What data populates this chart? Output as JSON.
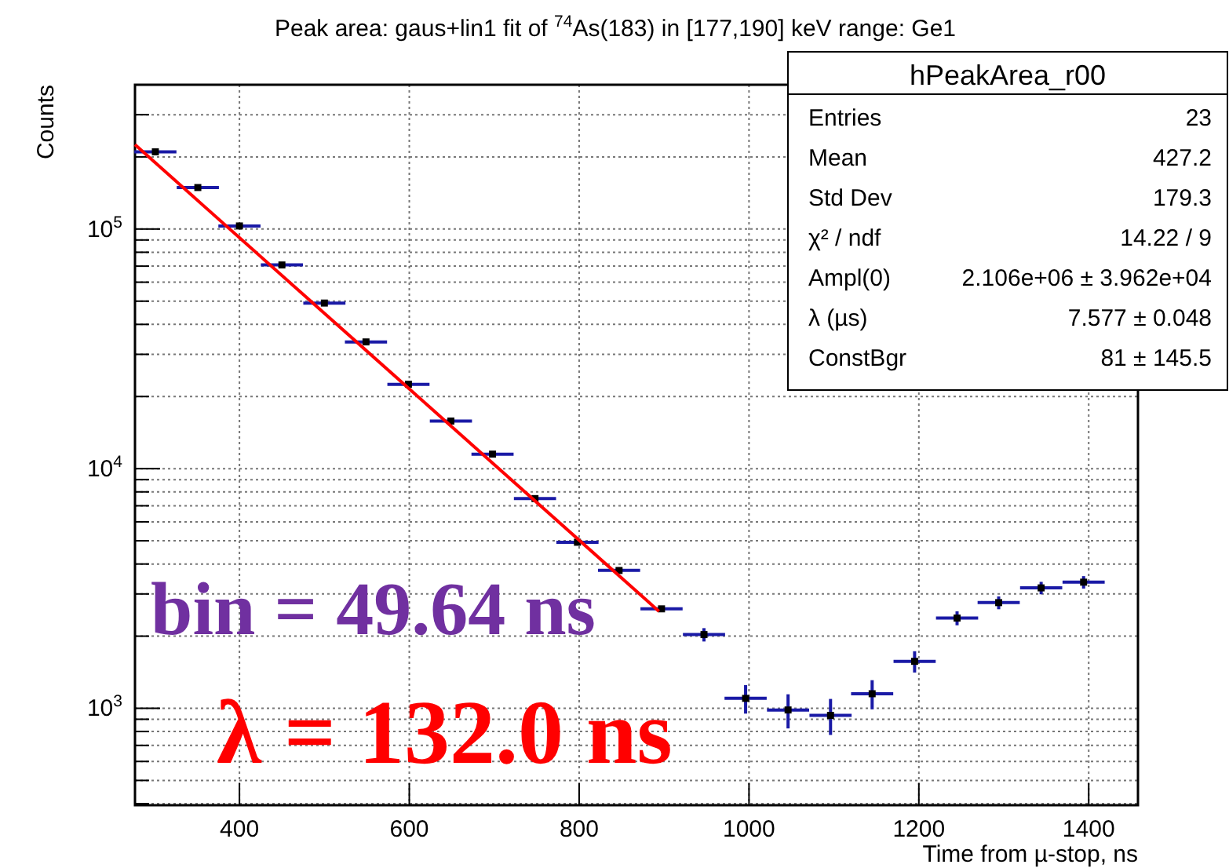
{
  "chart_data": {
    "type": "scatter",
    "title": "Peak area: gaus+lin1 fit of $^{74}$As(183) in [177,190] keV range: Ge1",
    "xlabel": "Time from µ-stop, ns",
    "ylabel": "Counts",
    "log": "y",
    "grid": true,
    "marker": "square",
    "xlim": [
      277,
      1458
    ],
    "ylim": [
      394,
      400000
    ],
    "xticks": [
      400,
      600,
      800,
      1000,
      1200,
      1400
    ],
    "yticks": [
      {
        "value": 400,
        "label": null
      },
      {
        "value": 500,
        "label": null
      },
      {
        "value": 600,
        "label": null
      },
      {
        "value": 700,
        "label": null
      },
      {
        "value": 800,
        "label": null
      },
      {
        "value": 900,
        "label": null
      },
      {
        "value": 1000,
        "label": "10$^{3}$"
      },
      {
        "value": 2000,
        "label": null
      },
      {
        "value": 3000,
        "label": null
      },
      {
        "value": 4000,
        "label": null
      },
      {
        "value": 5000,
        "label": null
      },
      {
        "value": 6000,
        "label": null
      },
      {
        "value": 7000,
        "label": null
      },
      {
        "value": 8000,
        "label": null
      },
      {
        "value": 9000,
        "label": null
      },
      {
        "value": 10000,
        "label": "10$^{4}$"
      },
      {
        "value": 20000,
        "label": null
      },
      {
        "value": 30000,
        "label": null
      },
      {
        "value": 40000,
        "label": null
      },
      {
        "value": 50000,
        "label": null
      },
      {
        "value": 60000,
        "label": null
      },
      {
        "value": 70000,
        "label": null
      },
      {
        "value": 80000,
        "label": null
      },
      {
        "value": 90000,
        "label": null
      },
      {
        "value": 100000,
        "label": "10$^{5}$"
      },
      {
        "value": 200000,
        "label": null
      },
      {
        "value": 300000,
        "label": null
      },
      {
        "value": 400000,
        "label": null
      }
    ],
    "series": [
      {
        "color": "#000000",
        "x": [
          301,
          351,
          400,
          450,
          500,
          549,
          599,
          649,
          698,
          748,
          798,
          847,
          897,
          947,
          996,
          1046,
          1096,
          1145,
          1195,
          1245,
          1294,
          1344,
          1394
        ],
        "values": [
          210000,
          149000,
          103000,
          70800,
          49100,
          33800,
          22500,
          15800,
          11500,
          7500,
          4930,
          3760,
          2600,
          2030,
          1100,
          984,
          934,
          1150,
          1570,
          2380,
          2760,
          3180,
          3360
        ],
        "xerrors": [
          24.82,
          24.82,
          24.82,
          24.82,
          24.82,
          24.82,
          24.82,
          24.82,
          24.82,
          24.82,
          24.82,
          24.82,
          24.82,
          24.82,
          24.82,
          24.82,
          24.82,
          24.82,
          24.82,
          24.82,
          24.82,
          24.82,
          24.82
        ],
        "errors": [
          null,
          null,
          null,
          null,
          null,
          null,
          null,
          null,
          null,
          null,
          null,
          null,
          null,
          130,
          150,
          160,
          160,
          160,
          160,
          160,
          170,
          190,
          200
        ]
      },
      {
        "type": "line",
        "marker": "none",
        "color": "#ff0000",
        "x": [
          277,
          894
        ],
        "values": [
          225000,
          2540
        ]
      }
    ],
    "annotations": [
      "hPeakArea_r00",
      "Entries",
      "23",
      "Mean",
      "427.2",
      "Std Dev",
      "179.3",
      "χ² / ndf",
      "14.22 / 9",
      "Ampl(0)",
      "2.106e+06 ± 3.962e+04",
      "λ (µs)",
      "7.577 ± 0.048",
      "ConstBgr",
      "81 ± 145.5",
      "bin = 49.64 ns",
      "λ = 132.0 ns"
    ]
  }
}
